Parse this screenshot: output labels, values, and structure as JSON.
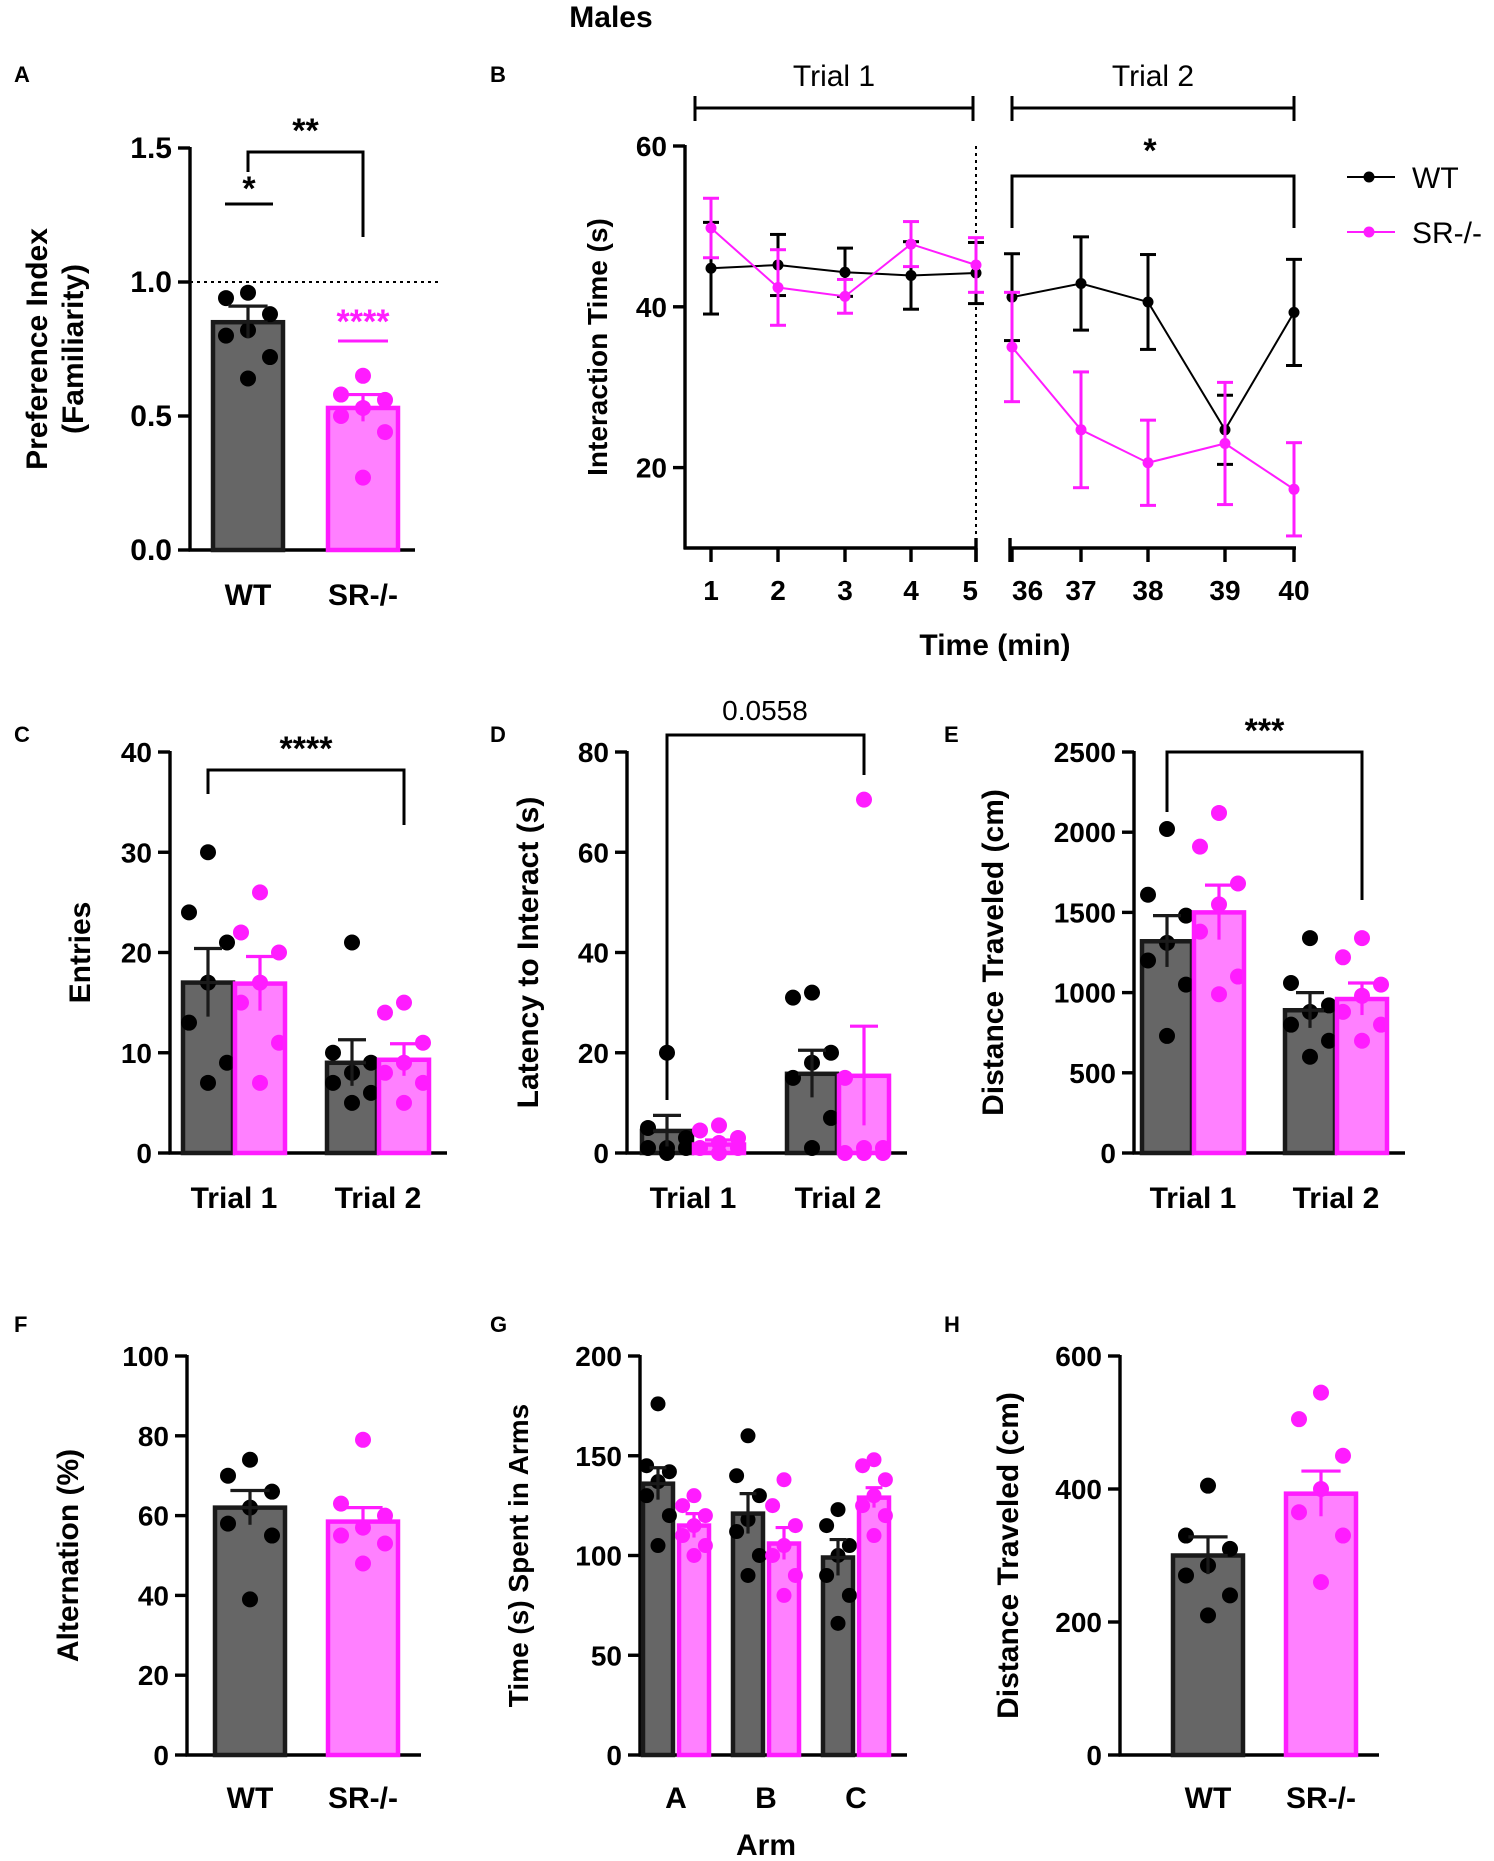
{
  "figure_title": "Males",
  "colors": {
    "wt": "#1a1a1a",
    "wt_fill": "#666666",
    "sr": "#ff1cff",
    "sr_fill": "#ff80ff",
    "dot_black": "#000000",
    "axis": "#000000"
  },
  "chart_data": [
    {
      "panel": "A",
      "type": "bar",
      "categories": [
        "WT",
        "SR-/-"
      ],
      "values": [
        0.85,
        0.53
      ],
      "errors": [
        0.06,
        0.05
      ],
      "points": [
        [
          0.96,
          0.94,
          0.88,
          0.82,
          0.8,
          0.72,
          0.64
        ],
        [
          0.65,
          0.58,
          0.56,
          0.53,
          0.5,
          0.44,
          0.27
        ]
      ],
      "ylabel": "Preference Index\n(Familiarity)",
      "ylim": [
        0,
        1.5
      ],
      "yticks": [
        "0.0",
        "0.5",
        "1.0",
        "1.5"
      ],
      "reference_line": 1.0,
      "annotations": [
        {
          "text": "**",
          "between": [
            "WT",
            "SR-/-"
          ]
        },
        {
          "text": "*",
          "over": "WT",
          "vs": "reference"
        },
        {
          "text": "****",
          "over": "SR-/-",
          "vs": "reference"
        }
      ]
    },
    {
      "panel": "B",
      "type": "line",
      "ylabel": "Interaction Time (s)",
      "xlabel": "Time (min)",
      "ylim": [
        10,
        60
      ],
      "yticks": [
        "20",
        "40",
        "60"
      ],
      "segments": [
        {
          "label": "Trial 1",
          "x": [
            "1",
            "2",
            "3",
            "4",
            "5"
          ]
        },
        {
          "label": "Trial 2",
          "x": [
            "36",
            "37",
            "38",
            "39",
            "40"
          ]
        }
      ],
      "series": [
        {
          "name": "WT",
          "values": [
            44.8,
            45.2,
            44.3,
            43.9,
            44.2,
            41.2,
            42.9,
            40.6,
            24.7,
            39.3
          ],
          "errors": [
            5.7,
            3.8,
            3.0,
            4.2,
            3.8,
            5.4,
            5.8,
            5.9,
            4.3,
            6.6
          ]
        },
        {
          "name": "SR-/-",
          "values": [
            49.8,
            42.4,
            41.3,
            47.8,
            45.2,
            35.0,
            24.7,
            20.6,
            23.0,
            17.3
          ],
          "errors": [
            3.7,
            4.7,
            2.1,
            2.8,
            3.4,
            6.8,
            7.2,
            5.3,
            7.6,
            5.8
          ]
        }
      ],
      "annotations": [
        {
          "text": "*",
          "between": [
            "36",
            "40"
          ]
        }
      ],
      "legend": "right"
    },
    {
      "panel": "C",
      "type": "bar",
      "categories": [
        "Trial 1",
        "Trial 2"
      ],
      "series": [
        {
          "name": "WT",
          "values": [
            17,
            9
          ],
          "errors": [
            3.4,
            2.3
          ],
          "points": [
            [
              30,
              24,
              21,
              17,
              13,
              9,
              7
            ],
            [
              21,
              10,
              9,
              8,
              7,
              6,
              5
            ]
          ]
        },
        {
          "name": "SR-/-",
          "values": [
            16.9,
            9.3
          ],
          "errors": [
            2.7,
            1.6
          ],
          "points": [
            [
              26,
              22,
              20,
              17,
              15,
              11,
              7
            ],
            [
              15,
              14,
              11,
              9,
              8,
              7,
              5
            ]
          ]
        }
      ],
      "ylabel": "Entries",
      "ylim": [
        0,
        40
      ],
      "yticks": [
        "0",
        "10",
        "20",
        "30",
        "40"
      ],
      "annotations": [
        {
          "text": "****",
          "between": [
            "Trial 1",
            "Trial 2"
          ]
        }
      ]
    },
    {
      "panel": "D",
      "type": "bar",
      "categories": [
        "Trial 1",
        "Trial 2"
      ],
      "series": [
        {
          "name": "WT",
          "values": [
            4.4,
            15.8
          ],
          "errors": [
            3.1,
            4.7
          ],
          "points": [
            [
              20,
              5,
              3,
              1,
              1,
              1,
              0
            ],
            [
              32,
              31,
              20,
              18,
              15,
              7,
              1
            ]
          ]
        },
        {
          "name": "SR-/-",
          "values": [
            1.7,
            15.4
          ],
          "errors": [
            0.9,
            9.9
          ],
          "points": [
            [
              5.5,
              4.5,
              3,
              2,
              1,
              1,
              0
            ],
            [
              70.5,
              15,
              1,
              1,
              0,
              0,
              0
            ]
          ]
        }
      ],
      "ylabel": "Latency to Interact (s)",
      "ylim": [
        0,
        80
      ],
      "yticks": [
        "0",
        "20",
        "40",
        "60",
        "80"
      ],
      "annotations": [
        {
          "text": "0.0558",
          "between": [
            "Trial 1",
            "Trial 2"
          ]
        }
      ]
    },
    {
      "panel": "E",
      "type": "bar",
      "categories": [
        "Trial 1",
        "Trial 2"
      ],
      "series": [
        {
          "name": "WT",
          "values": [
            1320,
            890
          ],
          "errors": [
            160,
            110
          ],
          "points": [
            [
              2020,
              1610,
              1480,
              1310,
              1200,
              1050,
              730
            ],
            [
              1340,
              1060,
              920,
              880,
              800,
              700,
              600
            ]
          ]
        },
        {
          "name": "SR-/-",
          "values": [
            1500,
            960
          ],
          "errors": [
            170,
            100
          ],
          "points": [
            [
              2120,
              1910,
              1680,
              1550,
              1380,
              1100,
              990
            ],
            [
              1340,
              1220,
              1050,
              980,
              880,
              800,
              700
            ]
          ]
        }
      ],
      "ylabel": "Distance Traveled (cm)",
      "ylim": [
        0,
        2500
      ],
      "yticks": [
        "0",
        "500",
        "1000",
        "1500",
        "2000",
        "2500"
      ],
      "annotations": [
        {
          "text": "***",
          "between": [
            "Trial 1",
            "Trial 2"
          ]
        }
      ]
    },
    {
      "panel": "F",
      "type": "bar",
      "categories": [
        "WT",
        "SR-/-"
      ],
      "values": [
        62,
        58.5
      ],
      "errors": [
        4.3,
        3.5
      ],
      "points": [
        [
          74,
          70,
          66,
          62,
          58,
          55,
          39
        ],
        [
          79,
          63,
          60,
          57,
          55,
          53,
          48
        ]
      ],
      "ylabel": "Alternation (%)",
      "ylim": [
        0,
        100
      ],
      "yticks": [
        "0",
        "20",
        "40",
        "60",
        "80",
        "100"
      ]
    },
    {
      "panel": "G",
      "type": "bar",
      "categories": [
        "A",
        "B",
        "C"
      ],
      "xlabel": "Arm",
      "series": [
        {
          "name": "WT",
          "values": [
            136,
            121,
            99
          ],
          "errors": [
            8,
            10,
            9
          ],
          "points": [
            [
              176,
              145,
              142,
              137,
              130,
              120,
              105
            ],
            [
              160,
              140,
              130,
              118,
              112,
              100,
              90
            ],
            [
              123,
              115,
              105,
              100,
              90,
              80,
              66
            ]
          ]
        },
        {
          "name": "SR-/-",
          "values": [
            115,
            106,
            129
          ],
          "errors": [
            6,
            8,
            5
          ],
          "points": [
            [
              130,
              125,
              120,
              115,
              110,
              105,
              100
            ],
            [
              138,
              125,
              115,
              105,
              100,
              90,
              80
            ],
            [
              148,
              145,
              138,
              130,
              125,
              120,
              110
            ]
          ]
        }
      ],
      "ylabel": "Time (s) Spent in Arms",
      "ylim": [
        0,
        200
      ],
      "yticks": [
        "0",
        "50",
        "100",
        "150",
        "200"
      ]
    },
    {
      "panel": "H",
      "type": "bar",
      "categories": [
        "WT",
        "SR-/-"
      ],
      "values": [
        300,
        393
      ],
      "errors": [
        28,
        34
      ],
      "points": [
        [
          405,
          330,
          310,
          285,
          270,
          240,
          210
        ],
        [
          545,
          505,
          450,
          400,
          365,
          330,
          260
        ]
      ],
      "ylabel": "Distance Traveled (cm)",
      "ylim": [
        0,
        600
      ],
      "yticks": [
        "0",
        "200",
        "400",
        "600"
      ]
    }
  ]
}
